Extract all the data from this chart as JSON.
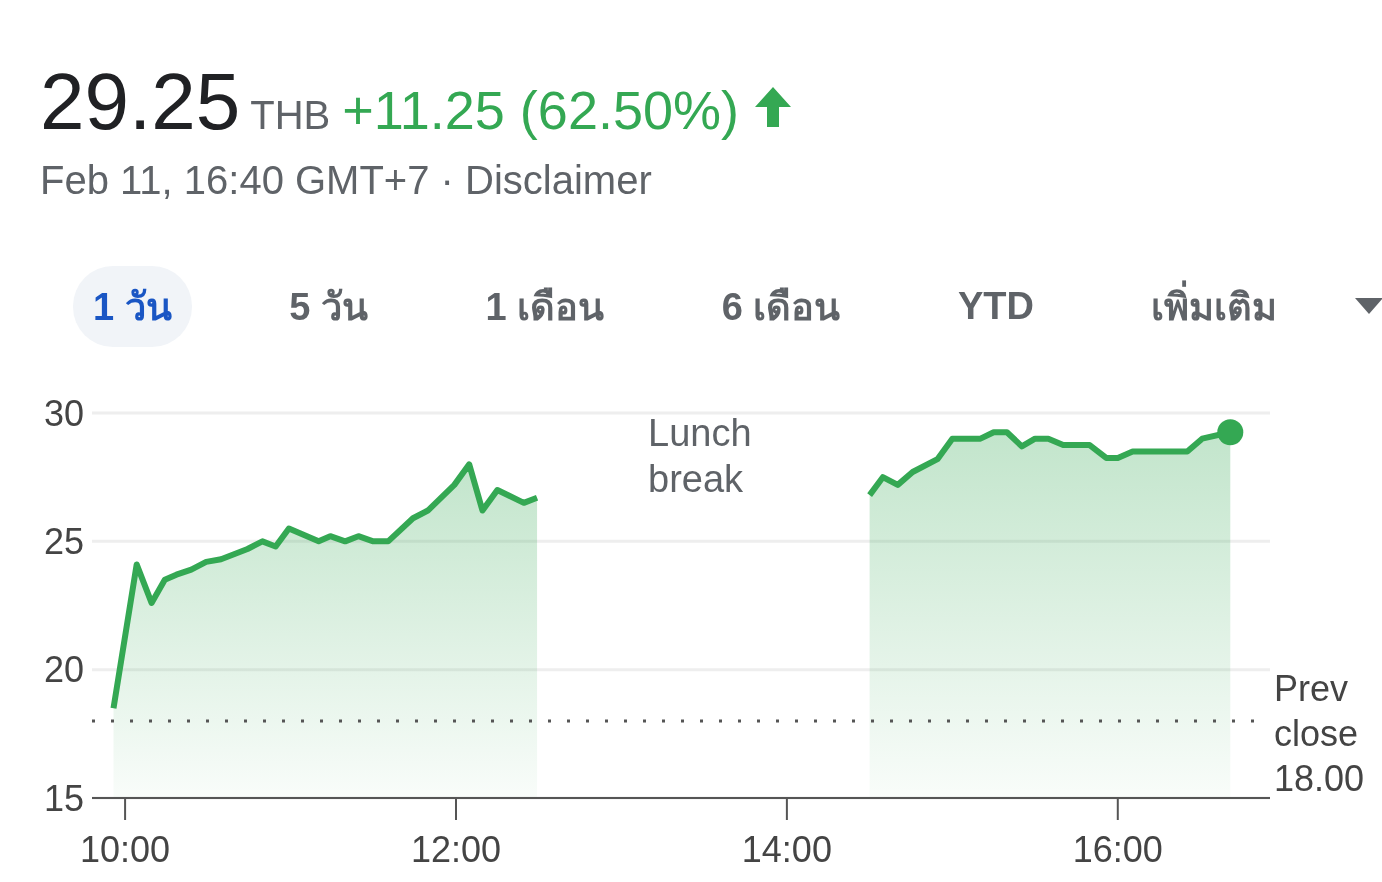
{
  "chart_data": {
    "type": "area",
    "title": "29.25",
    "annotations": [
      "THB",
      "+11.25 (62.50%)",
      "Feb 11, 16:40 GMT+7 · Disclaimer",
      "1 วัน",
      "5 วัน",
      "1 เดือน",
      "6 เดือน",
      "YTD",
      "เพิ่มเติม",
      "Lunch break"
    ],
    "series": [
      {
        "color": "#34a853",
        "x": [
          9.93,
          10.07,
          10.16,
          10.24,
          10.31,
          10.4,
          10.49,
          10.58,
          10.74,
          10.83,
          10.91,
          10.99,
          11.17,
          11.24,
          11.33,
          11.41,
          11.5,
          11.59,
          11.74,
          11.83,
          11.99,
          12.08,
          12.16,
          12.25,
          12.41,
          12.49
        ],
        "values": [
          18.5,
          24.1,
          22.6,
          23.5,
          23.7,
          23.9,
          24.2,
          24.3,
          24.7,
          25.0,
          24.8,
          25.5,
          25.0,
          25.2,
          25.0,
          25.2,
          25.0,
          25.0,
          25.9,
          26.2,
          27.2,
          28.0,
          26.2,
          27.0,
          26.5,
          26.7
        ]
      },
      {
        "color": "#34a853",
        "x": [
          14.5,
          14.58,
          14.67,
          14.76,
          14.91,
          15.0,
          15.17,
          15.25,
          15.33,
          15.42,
          15.5,
          15.58,
          15.67,
          15.83,
          15.93,
          16.0,
          16.09,
          16.42,
          16.51,
          16.68
        ],
        "values": [
          26.8,
          27.5,
          27.2,
          27.7,
          28.2,
          29.0,
          29.0,
          29.25,
          29.25,
          28.7,
          29.0,
          29.0,
          28.75,
          28.75,
          28.25,
          28.25,
          28.5,
          28.5,
          29.0,
          29.25
        ]
      }
    ],
    "xlim": [
      9.8,
      16.92
    ],
    "xticks": [
      {
        "value": 10,
        "label": "10:00"
      },
      {
        "value": 12,
        "label": "12:00"
      },
      {
        "value": 14,
        "label": "14:00"
      },
      {
        "value": 16,
        "label": "16:00"
      }
    ],
    "ylim": [
      15,
      30
    ],
    "yticks": [
      15,
      20,
      25,
      30
    ],
    "grid": "y",
    "marker": "none",
    "line_style": "solid",
    "ref_lines": [
      {
        "axis": "y",
        "value": 18,
        "label": "Prev close 18.00",
        "color": "#555555",
        "line_style": "dotted"
      }
    ]
  }
}
